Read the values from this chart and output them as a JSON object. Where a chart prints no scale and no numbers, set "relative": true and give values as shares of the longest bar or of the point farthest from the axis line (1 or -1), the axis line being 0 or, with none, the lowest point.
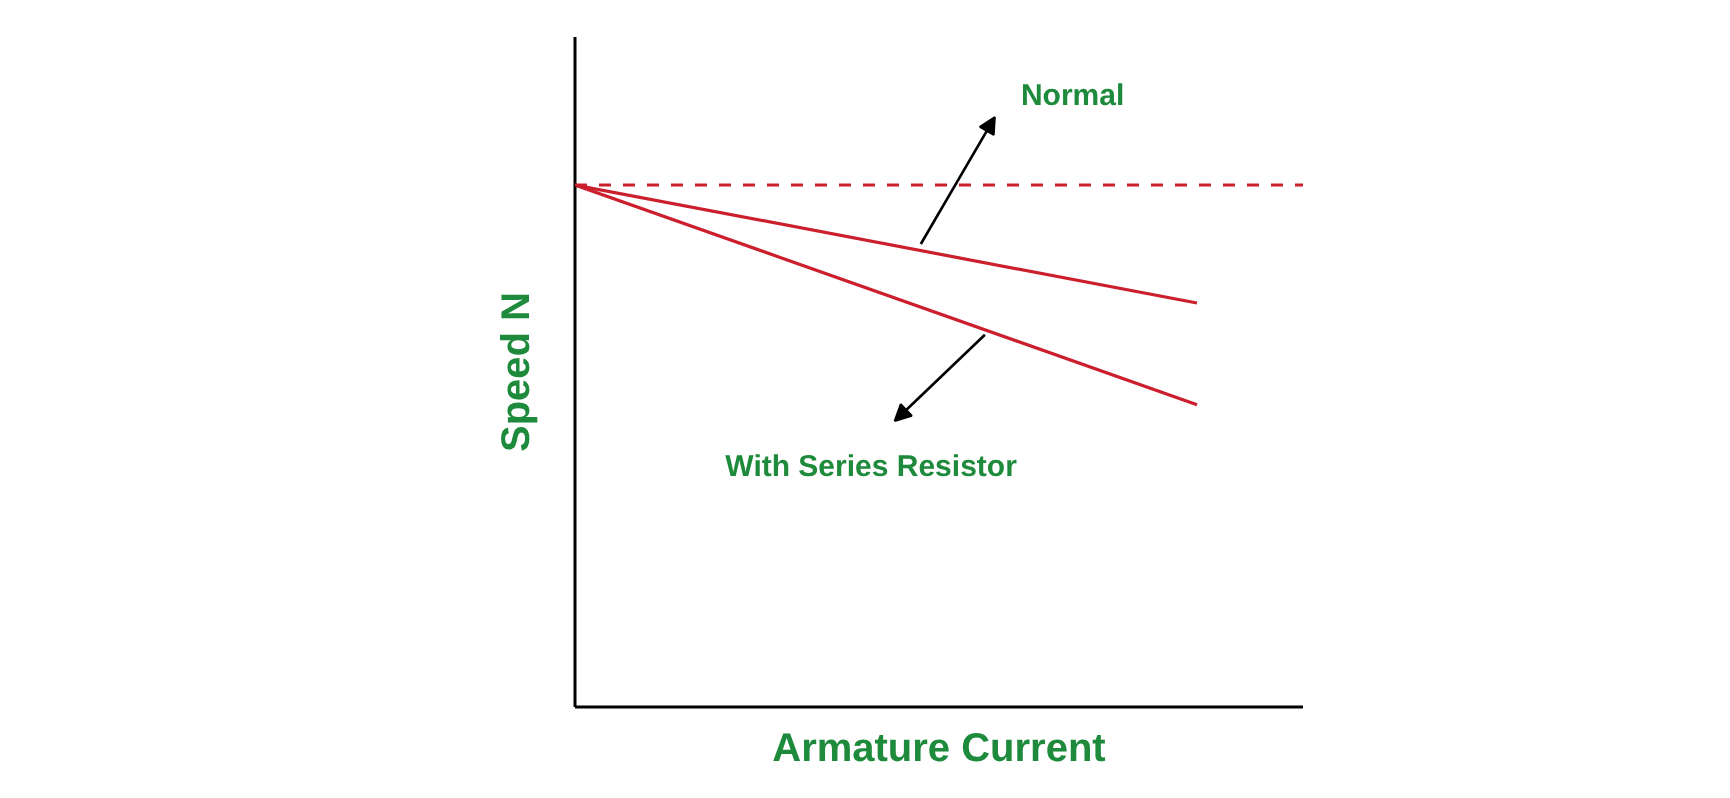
{
  "chart_data": {
    "type": "line",
    "relative": true,
    "categories": [
      null,
      null
    ],
    "xlabel": "Armature Current",
    "ylabel": "Speed N",
    "series": [
      {
        "color": "#cc1f2d",
        "values": [
          1,
          0.774
        ]
      },
      {
        "color": "#cc1f2d",
        "values": [
          1,
          0.579
        ]
      }
    ],
    "ref_lines": [
      {
        "axis": "y",
        "value": 1,
        "color": "#cc1f2d",
        "line_style": "dashed"
      }
    ],
    "annotations": [
      "Normal",
      "With Series Resistor"
    ],
    "marker": "none",
    "line_style": "solid"
  }
}
